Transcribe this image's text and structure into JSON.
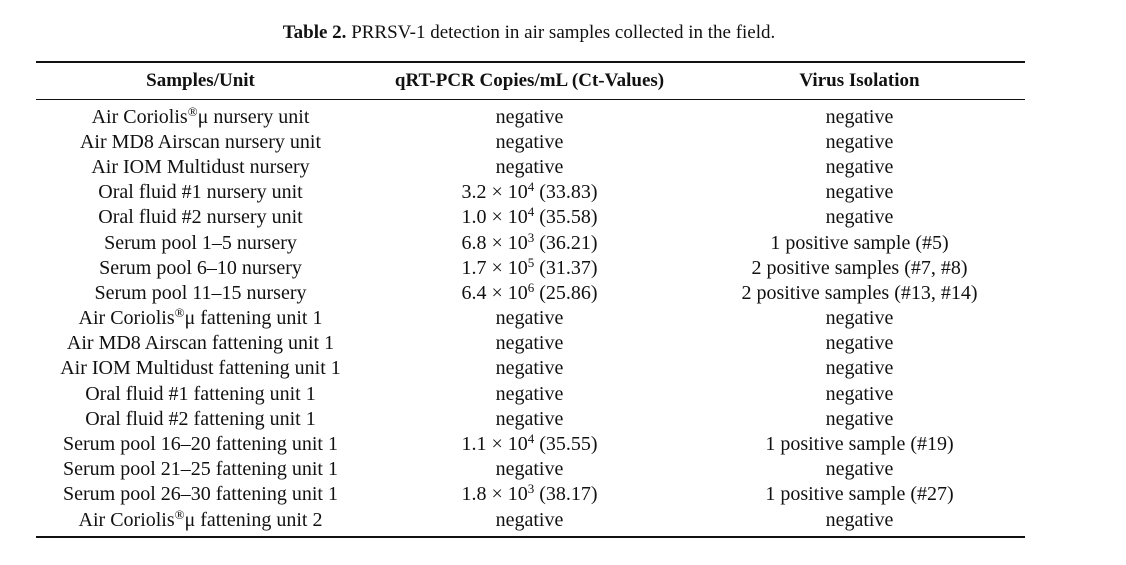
{
  "caption": {
    "label": "Table 2.",
    "text": " PRRSV-1 detection in air samples collected in the field."
  },
  "headers": [
    "Samples/Unit",
    "qRT-PCR Copies/mL (Ct-Values)",
    "Virus Isolation"
  ],
  "rows": [
    {
      "sample": "Air Coriolis",
      "sample_sup": "®",
      "sample_tail": "μ nursery unit",
      "pcr": "negative",
      "pcr_exp": "",
      "pcr_tail": "",
      "isolation": "negative"
    },
    {
      "sample": "Air MD8 Airscan nursery unit",
      "sample_sup": "",
      "sample_tail": "",
      "pcr": "negative",
      "pcr_exp": "",
      "pcr_tail": "",
      "isolation": "negative"
    },
    {
      "sample": "Air IOM Multidust nursery",
      "sample_sup": "",
      "sample_tail": "",
      "pcr": "negative",
      "pcr_exp": "",
      "pcr_tail": "",
      "isolation": "negative"
    },
    {
      "sample": "Oral fluid #1 nursery unit",
      "sample_sup": "",
      "sample_tail": "",
      "pcr": "3.2 × 10",
      "pcr_exp": "4",
      "pcr_tail": " (33.83)",
      "isolation": "negative"
    },
    {
      "sample": "Oral fluid #2 nursery unit",
      "sample_sup": "",
      "sample_tail": "",
      "pcr": "1.0 × 10",
      "pcr_exp": "4",
      "pcr_tail": " (35.58)",
      "isolation": "negative"
    },
    {
      "sample": "Serum pool 1–5 nursery",
      "sample_sup": "",
      "sample_tail": "",
      "pcr": "6.8 × 10",
      "pcr_exp": "3",
      "pcr_tail": " (36.21)",
      "isolation": "1 positive sample (#5)"
    },
    {
      "sample": "Serum pool 6–10 nursery",
      "sample_sup": "",
      "sample_tail": "",
      "pcr": "1.7 × 10",
      "pcr_exp": "5",
      "pcr_tail": " (31.37)",
      "isolation": "2 positive samples (#7, #8)"
    },
    {
      "sample": "Serum pool 11–15 nursery",
      "sample_sup": "",
      "sample_tail": "",
      "pcr": "6.4 × 10",
      "pcr_exp": "6",
      "pcr_tail": " (25.86)",
      "isolation": "2 positive samples (#13, #14)"
    },
    {
      "sample": "Air Coriolis",
      "sample_sup": "®",
      "sample_tail": "μ fattening unit 1",
      "pcr": "negative",
      "pcr_exp": "",
      "pcr_tail": "",
      "isolation": "negative"
    },
    {
      "sample": "Air MD8 Airscan fattening unit 1",
      "sample_sup": "",
      "sample_tail": "",
      "pcr": "negative",
      "pcr_exp": "",
      "pcr_tail": "",
      "isolation": "negative"
    },
    {
      "sample": "Air IOM Multidust fattening unit 1",
      "sample_sup": "",
      "sample_tail": "",
      "pcr": "negative",
      "pcr_exp": "",
      "pcr_tail": "",
      "isolation": "negative"
    },
    {
      "sample": "Oral fluid #1 fattening unit 1",
      "sample_sup": "",
      "sample_tail": "",
      "pcr": "negative",
      "pcr_exp": "",
      "pcr_tail": "",
      "isolation": "negative"
    },
    {
      "sample": "Oral fluid #2 fattening unit 1",
      "sample_sup": "",
      "sample_tail": "",
      "pcr": "negative",
      "pcr_exp": "",
      "pcr_tail": "",
      "isolation": "negative"
    },
    {
      "sample": "Serum pool 16–20 fattening unit 1",
      "sample_sup": "",
      "sample_tail": "",
      "pcr": "1.1 × 10",
      "pcr_exp": "4",
      "pcr_tail": " (35.55)",
      "isolation": "1 positive sample (#19)"
    },
    {
      "sample": "Serum pool 21–25 fattening unit 1",
      "sample_sup": "",
      "sample_tail": "",
      "pcr": "negative",
      "pcr_exp": "",
      "pcr_tail": "",
      "isolation": "negative"
    },
    {
      "sample": "Serum pool 26–30 fattening unit 1",
      "sample_sup": "",
      "sample_tail": "",
      "pcr": "1.8 × 10",
      "pcr_exp": "3",
      "pcr_tail": " (38.17)",
      "isolation": "1 positive sample (#27)"
    },
    {
      "sample": "Air Coriolis",
      "sample_sup": "®",
      "sample_tail": "μ fattening unit 2",
      "pcr": "negative",
      "pcr_exp": "",
      "pcr_tail": "",
      "isolation": "negative"
    }
  ]
}
